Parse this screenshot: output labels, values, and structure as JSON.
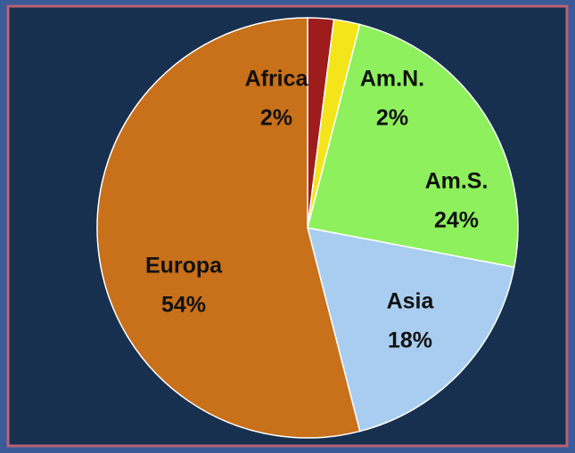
{
  "chart_data": {
    "type": "pie",
    "categories": [
      "Africa",
      "Am.N.",
      "Am.S.",
      "Asia",
      "Europa"
    ],
    "values": [
      2,
      2,
      24,
      18,
      54
    ],
    "value_labels": [
      "2%",
      "2%",
      "24%",
      "18%",
      "54%"
    ],
    "colors": [
      "#9e1c1c",
      "#f4e51a",
      "#8df05c",
      "#a8cdf0",
      "#c8701a"
    ]
  }
}
